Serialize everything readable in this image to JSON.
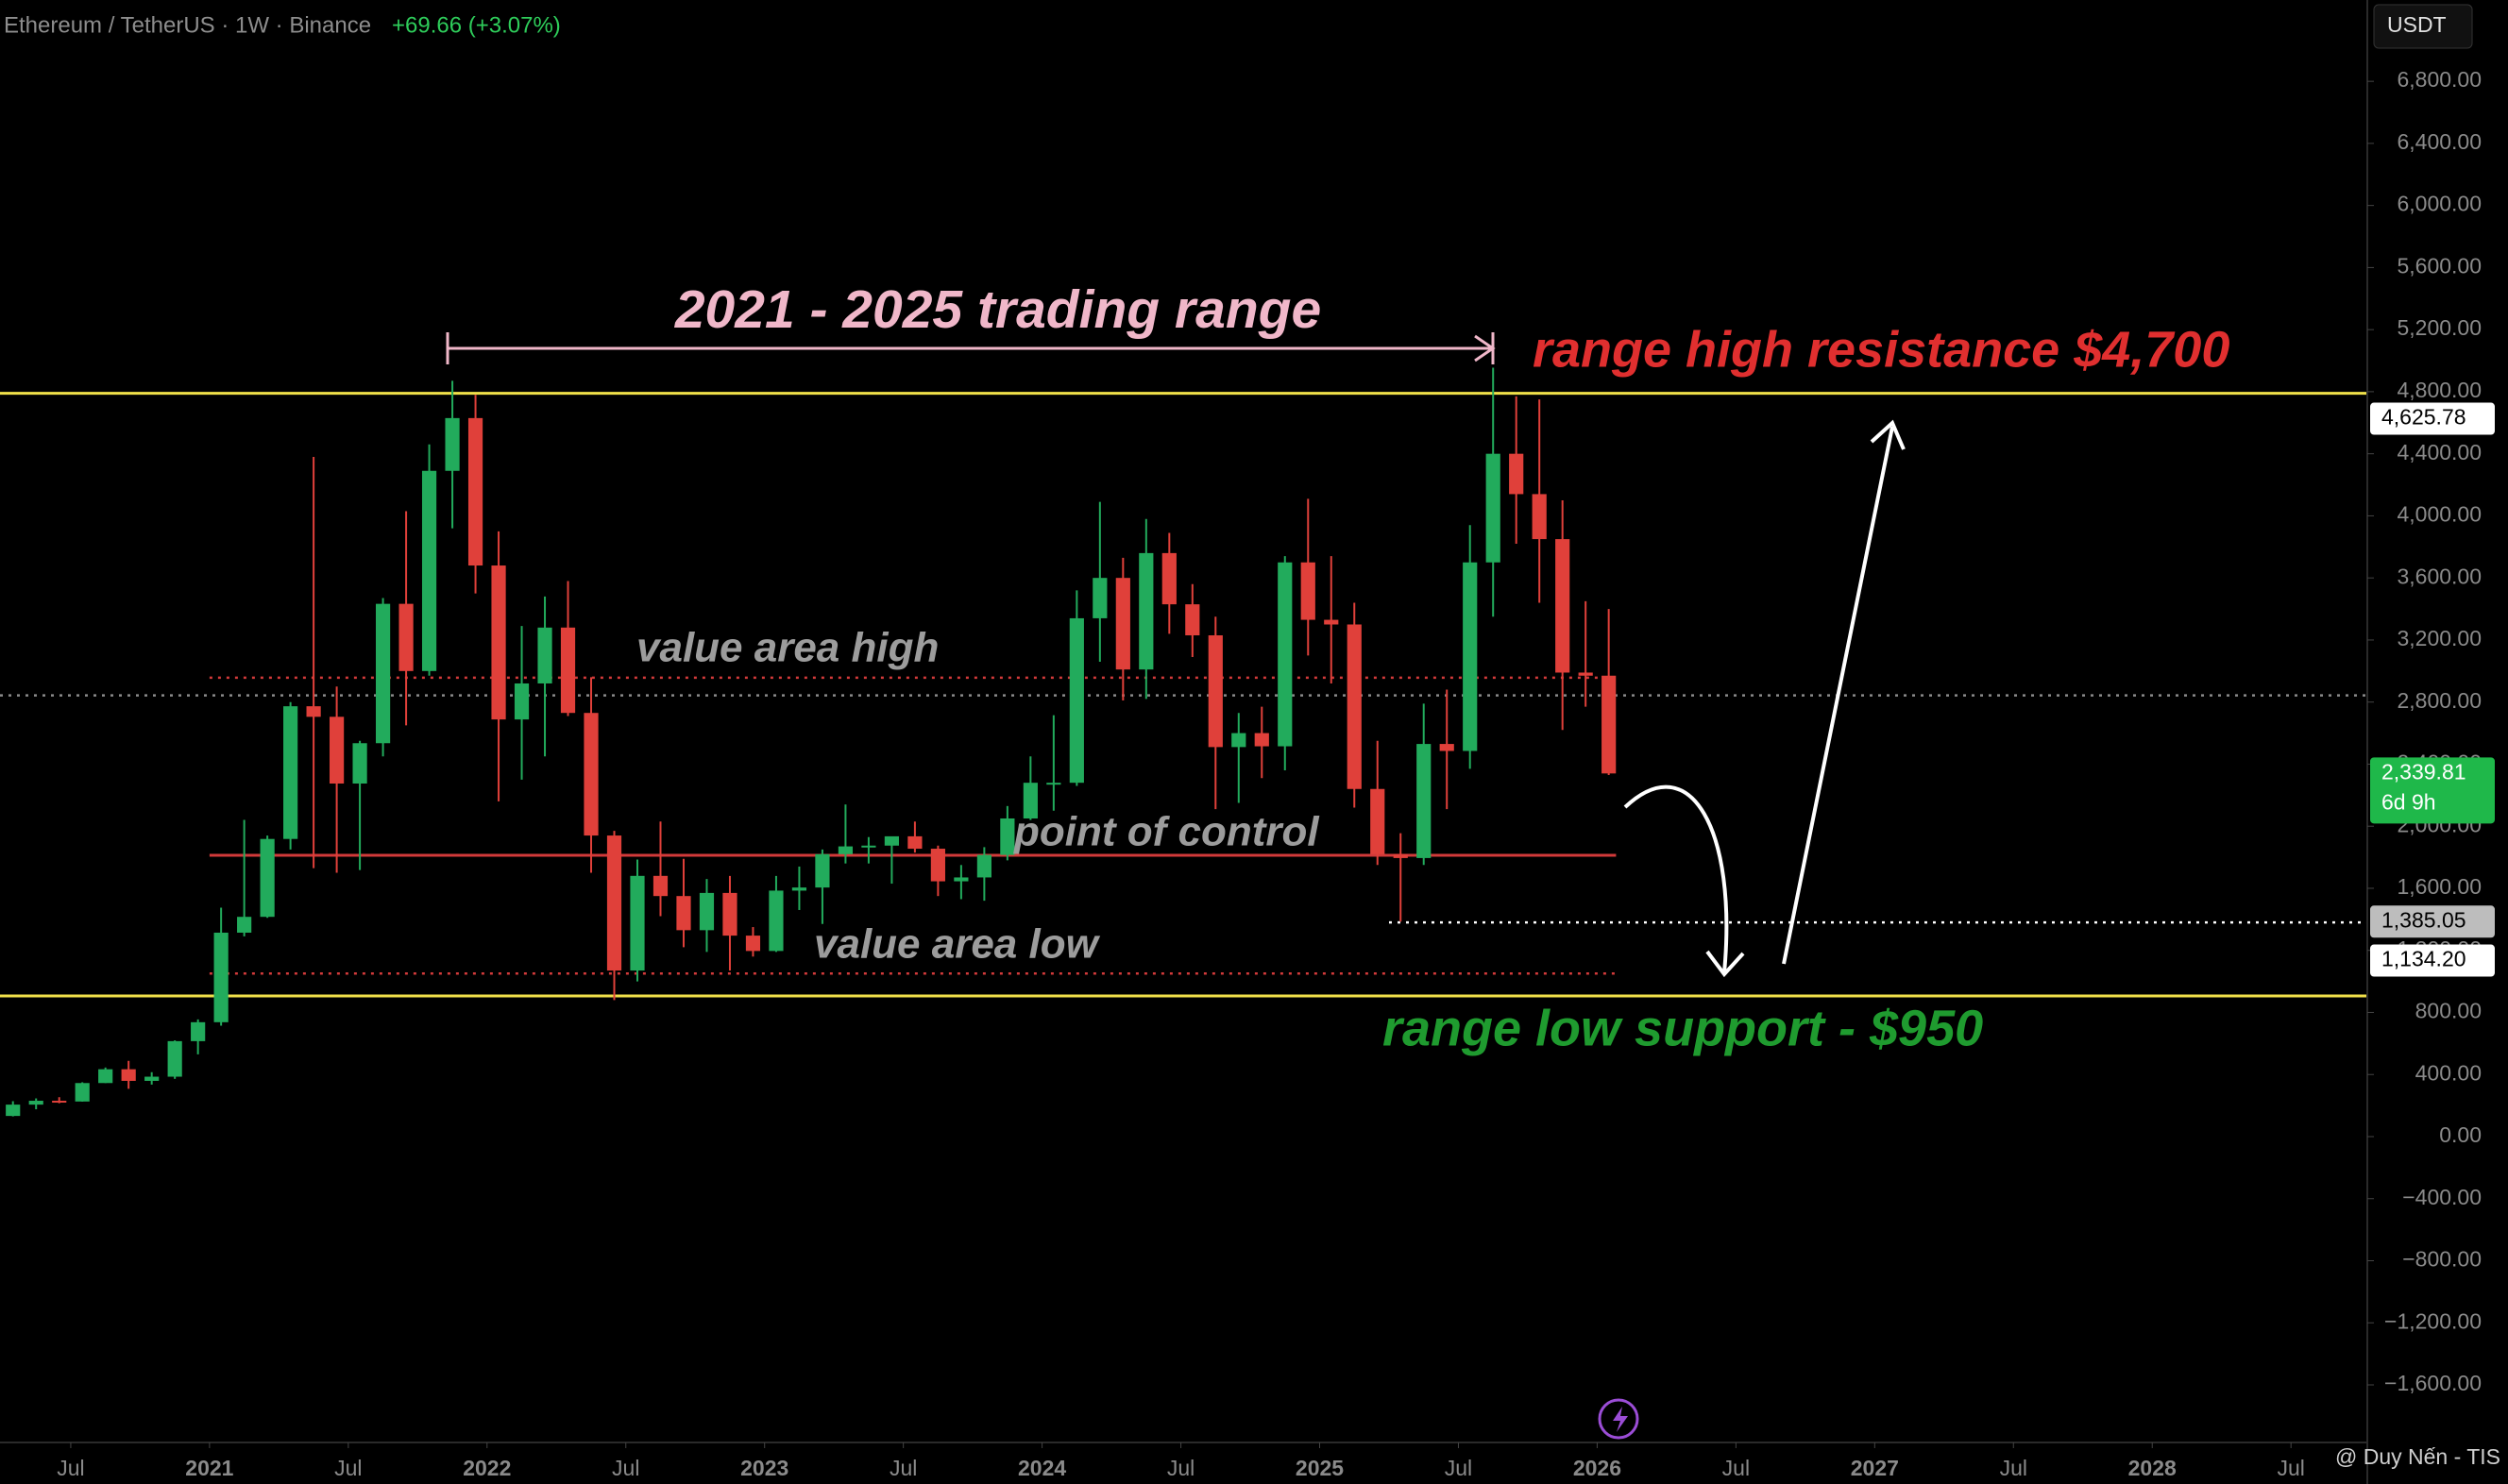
{
  "header": {
    "symbol": "Ethereum / TetherUS · 1W · Binance",
    "change": "+69.66 (+3.07%)",
    "currency": "USDT"
  },
  "watermark": "@ Duy Nến - TIS",
  "annotations": {
    "range": "2021 - 2025 trading range",
    "high": "range high resistance $4,700",
    "vah": "value area high",
    "poc": "point of control",
    "val": "value area low",
    "low": "range low support - $950"
  },
  "chart_data": {
    "type": "candlestick",
    "up_color": "#22ab5c",
    "down_color": "#e0403a",
    "xlim": [
      2020.245,
      2028.775
    ],
    "xticks": [
      {
        "value": 2020.5,
        "label": "Jul"
      },
      {
        "value": 2021,
        "label": "2021"
      },
      {
        "value": 2021.5,
        "label": "Jul"
      },
      {
        "value": 2022,
        "label": "2022"
      },
      {
        "value": 2022.5,
        "label": "Jul"
      },
      {
        "value": 2023,
        "label": "2023"
      },
      {
        "value": 2023.5,
        "label": "Jul"
      },
      {
        "value": 2024,
        "label": "2024"
      },
      {
        "value": 2024.5,
        "label": "Jul"
      },
      {
        "value": 2025,
        "label": "2025"
      },
      {
        "value": 2025.5,
        "label": "Jul"
      },
      {
        "value": 2026,
        "label": "2026"
      },
      {
        "value": 2026.5,
        "label": "Jul"
      },
      {
        "value": 2027,
        "label": "2027"
      },
      {
        "value": 2027.5,
        "label": "Jul"
      },
      {
        "value": 2028,
        "label": "2028"
      },
      {
        "value": 2028.5,
        "label": "Jul"
      }
    ],
    "ylim": [
      -1971,
      7324
    ],
    "yticks": [
      {
        "value": 6800,
        "label": "6,800.00"
      },
      {
        "value": 6400,
        "label": "6,400.00"
      },
      {
        "value": 6000,
        "label": "6,000.00"
      },
      {
        "value": 5600,
        "label": "5,600.00"
      },
      {
        "value": 5200,
        "label": "5,200.00"
      },
      {
        "value": 4800,
        "label": "4,800.00"
      },
      {
        "value": 4400,
        "label": "4,400.00"
      },
      {
        "value": 4000,
        "label": "4,000.00"
      },
      {
        "value": 3600,
        "label": "3,600.00"
      },
      {
        "value": 3200,
        "label": "3,200.00"
      },
      {
        "value": 2800,
        "label": "2,800.00"
      },
      {
        "value": 2400,
        "label": "2,400.00"
      },
      {
        "value": 2000,
        "label": "2,000.00"
      },
      {
        "value": 1600,
        "label": "1,600.00"
      },
      {
        "value": 1200,
        "label": "1,200.00"
      },
      {
        "value": 800,
        "label": "800.00"
      },
      {
        "value": 400,
        "label": "400.00"
      },
      {
        "value": 0,
        "label": "0.00"
      },
      {
        "value": -400,
        "label": "−400.00"
      },
      {
        "value": -800,
        "label": "−800.00"
      },
      {
        "value": -1200,
        "label": "−1,200.00"
      },
      {
        "value": -1600,
        "label": "−1,600.00"
      }
    ],
    "x": [
      "2020-04",
      "2020-05",
      "2020-06",
      "2020-07",
      "2020-08",
      "2020-09",
      "2020-10",
      "2020-11",
      "2020-12",
      "2021-01",
      "2021-02",
      "2021-03",
      "2021-04",
      "2021-05",
      "2021-06",
      "2021-07",
      "2021-08",
      "2021-09",
      "2021-10",
      "2021-11",
      "2021-12",
      "2022-01",
      "2022-02",
      "2022-03",
      "2022-04",
      "2022-05",
      "2022-06",
      "2022-07",
      "2022-08",
      "2022-09",
      "2022-10",
      "2022-11",
      "2022-12",
      "2023-01",
      "2023-02",
      "2023-03",
      "2023-04",
      "2023-05",
      "2023-06",
      "2023-07",
      "2023-08",
      "2023-09",
      "2023-10",
      "2023-11",
      "2023-12",
      "2024-01",
      "2024-02",
      "2024-03",
      "2024-04",
      "2024-05",
      "2024-06",
      "2024-07",
      "2024-08",
      "2024-09",
      "2024-10",
      "2024-11",
      "2024-12",
      "2025-01",
      "2025-02",
      "2025-03",
      "2025-04",
      "2025-05",
      "2025-06",
      "2025-07",
      "2025-08",
      "2025-09",
      "2025-10",
      "2025-11",
      "2025-12",
      "2026-01"
    ],
    "open": [
      133,
      206,
      231,
      226,
      345,
      434,
      359,
      386,
      615,
      737,
      1314,
      1416,
      1918,
      2773,
      2705,
      2275,
      2535,
      3433,
      3000,
      4290,
      4630,
      3680,
      2688,
      2920,
      3280,
      2730,
      1940,
      1070,
      1680,
      1550,
      1330,
      1570,
      1295,
      1196,
      1585,
      1605,
      1820,
      1870,
      1875,
      1935,
      1855,
      1645,
      1670,
      1815,
      2050,
      2280,
      2280,
      3340,
      3600,
      3010,
      3760,
      3430,
      3230,
      2510,
      2600,
      2515,
      3700,
      3330,
      3300,
      2240,
      1820,
      1795,
      2530,
      2485,
      3700,
      4400,
      4140,
      3850,
      2990,
      2970
    ],
    "high": [
      228,
      246,
      254,
      350,
      445,
      488,
      415,
      620,
      755,
      1475,
      2041,
      1940,
      2800,
      4380,
      2900,
      2550,
      3470,
      4030,
      4460,
      4870,
      4780,
      3900,
      3290,
      3480,
      3580,
      2960,
      1970,
      1785,
      2030,
      1790,
      1660,
      1680,
      1350,
      1680,
      1740,
      1850,
      2140,
      1930,
      1930,
      2030,
      1875,
      1750,
      1865,
      2130,
      2450,
      2715,
      3520,
      4090,
      3730,
      3980,
      3890,
      3560,
      3350,
      2730,
      2770,
      3740,
      4110,
      3740,
      3440,
      2550,
      1955,
      2790,
      2880,
      3940,
      4955,
      4770,
      4750,
      4100,
      3450,
      3400
    ],
    "low": [
      130,
      176,
      215,
      225,
      345,
      308,
      335,
      372,
      530,
      715,
      1290,
      1410,
      1850,
      1730,
      1700,
      1718,
      2450,
      2650,
      2970,
      3920,
      3500,
      2160,
      2300,
      2450,
      2710,
      1700,
      880,
      1000,
      1420,
      1220,
      1190,
      1070,
      1160,
      1190,
      1460,
      1370,
      1760,
      1760,
      1630,
      1830,
      1550,
      1530,
      1520,
      1780,
      2040,
      2100,
      2260,
      3060,
      2810,
      2820,
      3240,
      3090,
      2110,
      2150,
      2310,
      2360,
      3100,
      2920,
      2120,
      1750,
      1385,
      1750,
      2110,
      2370,
      3350,
      3820,
      3440,
      2620,
      2770,
      2330
    ],
    "close": [
      206,
      231,
      226,
      345,
      434,
      359,
      386,
      615,
      737,
      1314,
      1416,
      1918,
      2773,
      2705,
      2275,
      2535,
      3433,
      3000,
      4290,
      4630,
      3680,
      2688,
      2920,
      3280,
      2730,
      1940,
      1070,
      1680,
      1550,
      1330,
      1570,
      1295,
      1196,
      1585,
      1605,
      1820,
      1870,
      1875,
      1935,
      1855,
      1645,
      1670,
      1815,
      2050,
      2280,
      2280,
      3340,
      3600,
      3010,
      3760,
      3430,
      3230,
      2510,
      2600,
      2515,
      3700,
      3330,
      3300,
      2240,
      1820,
      1795,
      2530,
      2485,
      3700,
      4400,
      4140,
      3850,
      2990,
      2970,
      2340
    ],
    "levels": [
      {
        "value": 4790,
        "color": "#f0e04a",
        "style": "solid"
      },
      {
        "value": 906,
        "color": "#f0e04a",
        "style": "solid"
      },
      {
        "value": 2843,
        "color": "#8a8a8a",
        "style": "dotted"
      },
      {
        "value": 2957,
        "color": "#d23a3a",
        "style": "dotted",
        "start": "2021-01",
        "end": "2026-01"
      },
      {
        "value": 1813,
        "color": "#d23a3a",
        "style": "solid",
        "start": "2021-01",
        "end": "2026-01"
      },
      {
        "value": 1051,
        "color": "#d23a3a",
        "style": "dotted",
        "start": "2021-01",
        "end": "2026-01"
      },
      {
        "value": 1380,
        "color": "#ffffff",
        "style": "dotted",
        "start": "2025-04"
      }
    ],
    "price_labels": [
      {
        "value": 4625.78,
        "label": "4,625.78",
        "color": "#ffffff"
      },
      {
        "value": 2339.81,
        "label": "2,339.81",
        "countdown": "6d 9h",
        "color": "#1fb84a"
      },
      {
        "value": 1385.05,
        "label": "1,385.05",
        "color": "#bdbdbd"
      },
      {
        "value": 1134.2,
        "label": "1,134.20",
        "color": "#ffffff"
      }
    ]
  }
}
